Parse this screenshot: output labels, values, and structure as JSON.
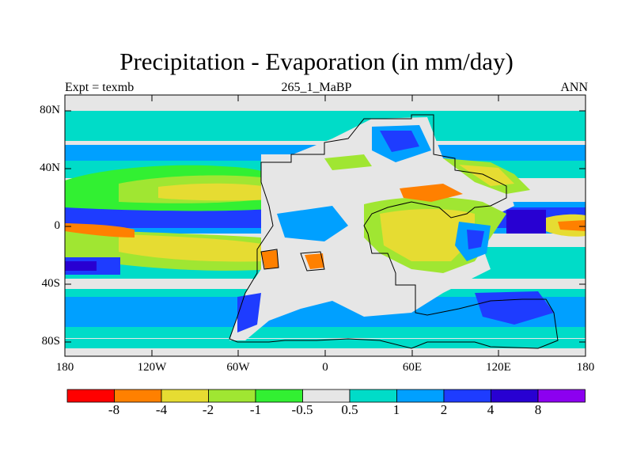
{
  "title": "Precipitation - Evaporation (in mm/day)",
  "subtitle_left": "Expt = texmb",
  "subtitle_center": "265_1_MaBP",
  "subtitle_right": "ANN",
  "y_ticks": [
    "80N",
    "40N",
    "0",
    "40S",
    "80S"
  ],
  "x_ticks": [
    "180",
    "120W",
    "60W",
    "0",
    "60E",
    "120E",
    "180"
  ],
  "colorbar": {
    "labels": [
      "-8",
      "-4",
      "-2",
      "-1",
      "-0.5",
      "0.5",
      "1",
      "2",
      "4",
      "8"
    ],
    "colors": [
      "#ff0000",
      "#ff8000",
      "#e6dc32",
      "#a0e632",
      "#32f032",
      "#e6e6e6",
      "#00dcc8",
      "#00a0ff",
      "#1e3cff",
      "#2800d2",
      "#8c00f0"
    ]
  },
  "chart_data": {
    "type": "heatmap",
    "title": "Precipitation - Evaporation (in mm/day)",
    "units": "mm/day",
    "experiment": "texmb",
    "period": "ANN",
    "x_range": [
      -180,
      180
    ],
    "y_range": [
      -90,
      90
    ],
    "levels": [
      -8,
      -4,
      -2,
      -1,
      -0.5,
      0.5,
      1,
      2,
      4,
      8
    ]
  }
}
